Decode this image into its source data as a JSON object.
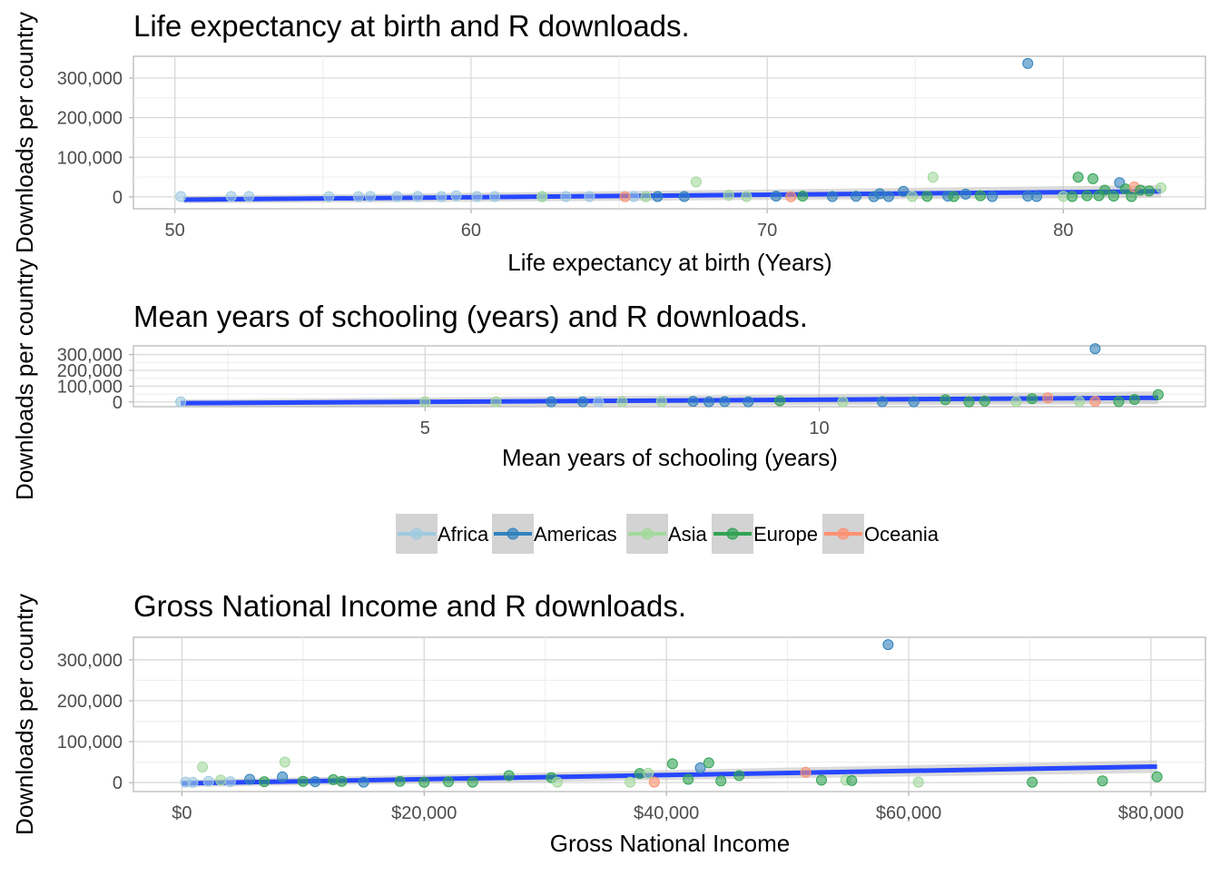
{
  "figure": {
    "legend": {
      "position": "between-panel-2-and-3",
      "entries": [
        {
          "name": "Africa",
          "color": "#9ecae1"
        },
        {
          "name": "Americas",
          "color": "#3182bd"
        },
        {
          "name": "Asia",
          "color": "#a1d99b"
        },
        {
          "name": "Europe",
          "color": "#31a354"
        },
        {
          "name": "Oceania",
          "color": "#fc9272"
        }
      ]
    },
    "trend_color": "#2747ff"
  },
  "chart_data": [
    {
      "type": "scatter",
      "title": "Life expectancy at birth and R downloads.",
      "xlabel": "Life expectancy at birth (Years)",
      "ylabel": "Downloads per country",
      "xlim": [
        48.6,
        84.8
      ],
      "ylim": [
        -30000,
        355000
      ],
      "xticks": [
        50,
        60,
        70,
        80
      ],
      "xtick_labels": [
        "50",
        "60",
        "70",
        "80"
      ],
      "yticks": [
        0,
        100000,
        200000,
        300000
      ],
      "ytick_labels": [
        "0",
        "100,000",
        "200,000",
        "300,000"
      ],
      "grid": true,
      "trend": {
        "x": [
          50.3,
          83.3
        ],
        "y": [
          -7000,
          14000
        ]
      },
      "points": [
        {
          "x": 50.2,
          "y": 1000,
          "region": "Africa"
        },
        {
          "x": 51.9,
          "y": 1000,
          "region": "Africa"
        },
        {
          "x": 52.5,
          "y": 800,
          "region": "Africa"
        },
        {
          "x": 55.2,
          "y": 500,
          "region": "Africa"
        },
        {
          "x": 56.2,
          "y": 700,
          "region": "Africa"
        },
        {
          "x": 56.6,
          "y": 1000,
          "region": "Africa"
        },
        {
          "x": 57.5,
          "y": 600,
          "region": "Africa"
        },
        {
          "x": 58.2,
          "y": 900,
          "region": "Africa"
        },
        {
          "x": 59.0,
          "y": 700,
          "region": "Africa"
        },
        {
          "x": 59.5,
          "y": 3000,
          "region": "Africa"
        },
        {
          "x": 60.2,
          "y": 800,
          "region": "Africa"
        },
        {
          "x": 60.8,
          "y": 1000,
          "region": "Africa"
        },
        {
          "x": 62.4,
          "y": 600,
          "region": "Africa"
        },
        {
          "x": 63.2,
          "y": 1000,
          "region": "Africa"
        },
        {
          "x": 64.0,
          "y": 900,
          "region": "Africa"
        },
        {
          "x": 65.5,
          "y": 1000,
          "region": "Africa"
        },
        {
          "x": 65.9,
          "y": 700,
          "region": "Asia"
        },
        {
          "x": 67.6,
          "y": 38000,
          "region": "Asia"
        },
        {
          "x": 65.2,
          "y": 500,
          "region": "Oceania"
        },
        {
          "x": 62.4,
          "y": 800,
          "region": "Asia"
        },
        {
          "x": 66.3,
          "y": 1000,
          "region": "Americas"
        },
        {
          "x": 67.2,
          "y": 1000,
          "region": "Americas"
        },
        {
          "x": 68.7,
          "y": 4000,
          "region": "Asia"
        },
        {
          "x": 69.3,
          "y": 1000,
          "region": "Asia"
        },
        {
          "x": 70.3,
          "y": 2000,
          "region": "Americas"
        },
        {
          "x": 70.8,
          "y": 500,
          "region": "Oceania"
        },
        {
          "x": 71.2,
          "y": 2000,
          "region": "Europe"
        },
        {
          "x": 72.2,
          "y": 1000,
          "region": "Americas"
        },
        {
          "x": 73.0,
          "y": 1500,
          "region": "Americas"
        },
        {
          "x": 73.6,
          "y": 600,
          "region": "Americas"
        },
        {
          "x": 73.8,
          "y": 8000,
          "region": "Americas"
        },
        {
          "x": 74.1,
          "y": 1000,
          "region": "Americas"
        },
        {
          "x": 74.6,
          "y": 14000,
          "region": "Americas"
        },
        {
          "x": 74.9,
          "y": 1000,
          "region": "Asia"
        },
        {
          "x": 75.4,
          "y": 1500,
          "region": "Europe"
        },
        {
          "x": 75.6,
          "y": 50000,
          "region": "Asia"
        },
        {
          "x": 76.1,
          "y": 2000,
          "region": "Americas"
        },
        {
          "x": 76.3,
          "y": 1000,
          "region": "Europe"
        },
        {
          "x": 76.7,
          "y": 7000,
          "region": "Americas"
        },
        {
          "x": 77.2,
          "y": 3000,
          "region": "Europe"
        },
        {
          "x": 77.6,
          "y": 1000,
          "region": "Americas"
        },
        {
          "x": 78.8,
          "y": 337000,
          "region": "Americas"
        },
        {
          "x": 78.8,
          "y": 2000,
          "region": "Americas"
        },
        {
          "x": 79.1,
          "y": 1000,
          "region": "Americas"
        },
        {
          "x": 80.0,
          "y": 1500,
          "region": "Asia"
        },
        {
          "x": 80.3,
          "y": 1000,
          "region": "Europe"
        },
        {
          "x": 80.5,
          "y": 50000,
          "region": "Europe"
        },
        {
          "x": 80.8,
          "y": 3000,
          "region": "Europe"
        },
        {
          "x": 81.0,
          "y": 46000,
          "region": "Europe"
        },
        {
          "x": 81.2,
          "y": 3000,
          "region": "Europe"
        },
        {
          "x": 81.4,
          "y": 17000,
          "region": "Europe"
        },
        {
          "x": 81.7,
          "y": 2000,
          "region": "Europe"
        },
        {
          "x": 81.9,
          "y": 36000,
          "region": "Americas"
        },
        {
          "x": 82.1,
          "y": 20000,
          "region": "Europe"
        },
        {
          "x": 82.3,
          "y": 1000,
          "region": "Europe"
        },
        {
          "x": 82.4,
          "y": 25000,
          "region": "Oceania"
        },
        {
          "x": 82.6,
          "y": 17000,
          "region": "Europe"
        },
        {
          "x": 82.9,
          "y": 15000,
          "region": "Europe"
        },
        {
          "x": 83.3,
          "y": 23000,
          "region": "Asia"
        }
      ]
    },
    {
      "type": "scatter",
      "title": "Mean years of schooling (years) and R downloads.",
      "xlabel": "Mean years of schooling (years)",
      "ylabel": "Downloads per country",
      "xlim": [
        1.3,
        14.9
      ],
      "ylim": [
        -30000,
        355000
      ],
      "xticks": [
        5,
        10
      ],
      "xtick_labels": [
        "5",
        "10"
      ],
      "yticks": [
        0,
        100000,
        200000,
        300000
      ],
      "ytick_labels": [
        "0",
        "100,000",
        "200,000",
        "300,000"
      ],
      "grid": true,
      "trend": {
        "x": [
          1.9,
          14.3
        ],
        "y": [
          -8000,
          26000
        ]
      },
      "points": [
        {
          "x": 1.9,
          "y": 1000,
          "region": "Africa"
        },
        {
          "x": 5.0,
          "y": 1000,
          "region": "Asia"
        },
        {
          "x": 5.9,
          "y": 1000,
          "region": "Asia"
        },
        {
          "x": 6.6,
          "y": 1000,
          "region": "Americas"
        },
        {
          "x": 7.0,
          "y": 1000,
          "region": "Americas"
        },
        {
          "x": 7.2,
          "y": 500,
          "region": "Africa"
        },
        {
          "x": 7.5,
          "y": 2000,
          "region": "Asia"
        },
        {
          "x": 8.0,
          "y": 3000,
          "region": "Asia"
        },
        {
          "x": 8.4,
          "y": 4000,
          "region": "Americas"
        },
        {
          "x": 8.6,
          "y": 1000,
          "region": "Americas"
        },
        {
          "x": 8.8,
          "y": 2000,
          "region": "Americas"
        },
        {
          "x": 9.1,
          "y": 1000,
          "region": "Americas"
        },
        {
          "x": 9.5,
          "y": 7000,
          "region": "Europe"
        },
        {
          "x": 10.3,
          "y": 1000,
          "region": "Asia"
        },
        {
          "x": 10.8,
          "y": 1500,
          "region": "Americas"
        },
        {
          "x": 11.2,
          "y": 1000,
          "region": "Americas"
        },
        {
          "x": 11.6,
          "y": 14000,
          "region": "Europe"
        },
        {
          "x": 11.9,
          "y": 1000,
          "region": "Europe"
        },
        {
          "x": 12.1,
          "y": 5000,
          "region": "Europe"
        },
        {
          "x": 12.5,
          "y": 2000,
          "region": "Asia"
        },
        {
          "x": 12.7,
          "y": 20000,
          "region": "Europe"
        },
        {
          "x": 12.9,
          "y": 25000,
          "region": "Oceania"
        },
        {
          "x": 13.3,
          "y": 3000,
          "region": "Asia"
        },
        {
          "x": 13.5,
          "y": 337000,
          "region": "Americas"
        },
        {
          "x": 13.5,
          "y": 4000,
          "region": "Oceania"
        },
        {
          "x": 13.8,
          "y": 2000,
          "region": "Europe"
        },
        {
          "x": 14.0,
          "y": 15000,
          "region": "Europe"
        },
        {
          "x": 14.3,
          "y": 46000,
          "region": "Europe"
        }
      ]
    },
    {
      "type": "scatter",
      "title": "Gross National Income and R downloads.",
      "xlabel": "Gross National Income",
      "ylabel": "Downloads per country",
      "xlim": [
        -4000,
        84500
      ],
      "ylim": [
        -22000,
        355000
      ],
      "xticks": [
        0,
        20000,
        40000,
        60000,
        80000
      ],
      "xtick_labels": [
        "$0",
        "$20,000",
        "$40,000",
        "$60,000",
        "$80,000"
      ],
      "yticks": [
        0,
        100000,
        200000,
        300000
      ],
      "ytick_labels": [
        "0",
        "100,000",
        "200,000",
        "300,000"
      ],
      "grid": true,
      "trend": {
        "x": [
          0,
          80500
        ],
        "y": [
          -2000,
          39000
        ]
      },
      "points": [
        {
          "x": 300,
          "y": 1000,
          "region": "Africa"
        },
        {
          "x": 900,
          "y": 500,
          "region": "Africa"
        },
        {
          "x": 1700,
          "y": 38000,
          "region": "Asia"
        },
        {
          "x": 2200,
          "y": 3000,
          "region": "Africa"
        },
        {
          "x": 3200,
          "y": 6000,
          "region": "Asia"
        },
        {
          "x": 4000,
          "y": 2000,
          "region": "Africa"
        },
        {
          "x": 5600,
          "y": 8000,
          "region": "Americas"
        },
        {
          "x": 6800,
          "y": 2000,
          "region": "Europe"
        },
        {
          "x": 8500,
          "y": 50000,
          "region": "Asia"
        },
        {
          "x": 8300,
          "y": 14000,
          "region": "Americas"
        },
        {
          "x": 10000,
          "y": 3000,
          "region": "Europe"
        },
        {
          "x": 11000,
          "y": 2000,
          "region": "Americas"
        },
        {
          "x": 12500,
          "y": 7000,
          "region": "Europe"
        },
        {
          "x": 13200,
          "y": 3000,
          "region": "Europe"
        },
        {
          "x": 15000,
          "y": 1000,
          "region": "Americas"
        },
        {
          "x": 18000,
          "y": 3000,
          "region": "Europe"
        },
        {
          "x": 20000,
          "y": 1000,
          "region": "Europe"
        },
        {
          "x": 22000,
          "y": 2000,
          "region": "Europe"
        },
        {
          "x": 24000,
          "y": 1000,
          "region": "Europe"
        },
        {
          "x": 27000,
          "y": 17000,
          "region": "Europe"
        },
        {
          "x": 30500,
          "y": 12000,
          "region": "Europe"
        },
        {
          "x": 31000,
          "y": 1000,
          "region": "Asia"
        },
        {
          "x": 37000,
          "y": 1000,
          "region": "Asia"
        },
        {
          "x": 37800,
          "y": 22000,
          "region": "Europe"
        },
        {
          "x": 38500,
          "y": 23000,
          "region": "Asia"
        },
        {
          "x": 39000,
          "y": 1000,
          "region": "Oceania"
        },
        {
          "x": 40500,
          "y": 46000,
          "region": "Europe"
        },
        {
          "x": 41800,
          "y": 8000,
          "region": "Europe"
        },
        {
          "x": 42800,
          "y": 36000,
          "region": "Americas"
        },
        {
          "x": 43500,
          "y": 48000,
          "region": "Europe"
        },
        {
          "x": 44500,
          "y": 4000,
          "region": "Europe"
        },
        {
          "x": 46000,
          "y": 17000,
          "region": "Europe"
        },
        {
          "x": 51500,
          "y": 25000,
          "region": "Oceania"
        },
        {
          "x": 52800,
          "y": 6000,
          "region": "Europe"
        },
        {
          "x": 54800,
          "y": 6000,
          "region": "Asia"
        },
        {
          "x": 55300,
          "y": 5000,
          "region": "Europe"
        },
        {
          "x": 58300,
          "y": 337000,
          "region": "Americas"
        },
        {
          "x": 60800,
          "y": 1000,
          "region": "Asia"
        },
        {
          "x": 70200,
          "y": 1000,
          "region": "Europe"
        },
        {
          "x": 76000,
          "y": 4000,
          "region": "Europe"
        },
        {
          "x": 80500,
          "y": 14000,
          "region": "Europe"
        }
      ]
    }
  ]
}
